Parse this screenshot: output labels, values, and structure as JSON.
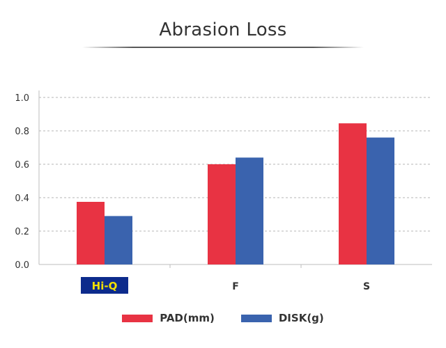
{
  "chart_data": {
    "type": "bar",
    "title": "Abrasion Loss",
    "categories": [
      "Hi-Q",
      "F",
      "S"
    ],
    "series": [
      {
        "name": "PAD(mm)",
        "color": "#e83343",
        "values": [
          0.375,
          0.6,
          0.845
        ]
      },
      {
        "name": "DISK(g)",
        "color": "#3a63ae",
        "values": [
          0.29,
          0.64,
          0.76
        ]
      }
    ],
    "ylim": [
      0.0,
      1.0
    ],
    "yticks": [
      "0.0",
      "0.2",
      "0.4",
      "0.6",
      "0.8",
      "1.0"
    ],
    "grid": true,
    "legend_position": "bottom-center",
    "category_logo": {
      "category": "Hi-Q",
      "background": "#0d2b8c",
      "text_color": "#f2e000"
    }
  }
}
